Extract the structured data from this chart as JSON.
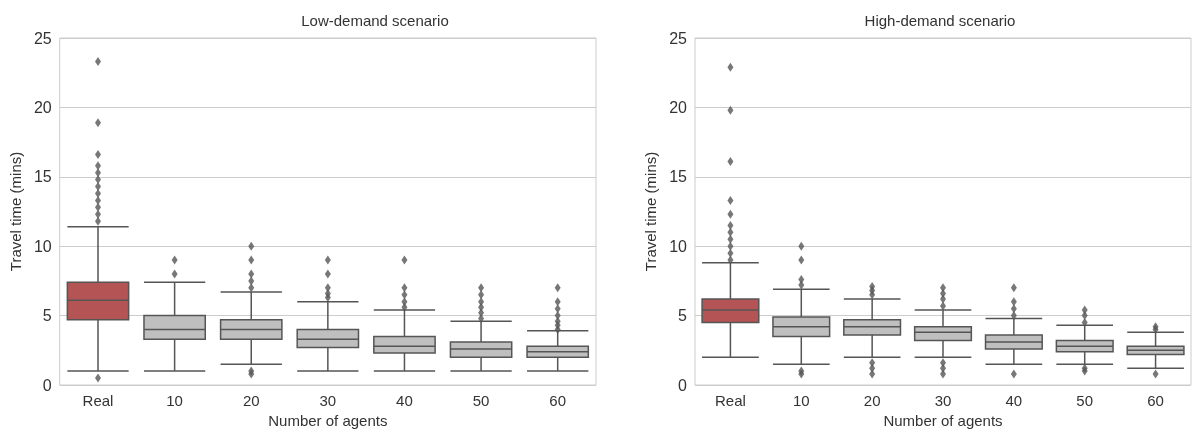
{
  "chart_data": [
    {
      "type": "box",
      "title": "Low-demand scenario",
      "xlabel": "Number of agents",
      "ylabel": "Travel time (mins)",
      "categories": [
        "Real",
        "10",
        "20",
        "30",
        "40",
        "50",
        "60"
      ],
      "colors": [
        "#b55454",
        "#bfbfbf",
        "#bfbfbf",
        "#bfbfbf",
        "#bfbfbf",
        "#bfbfbf",
        "#bfbfbf"
      ],
      "boxes": [
        {
          "low": 1.0,
          "q1": 4.7,
          "median": 6.1,
          "q3": 7.4,
          "high": 11.4,
          "outliers": [
            0.5,
            11.8,
            12.3,
            12.8,
            13.3,
            13.8,
            14.3,
            14.8,
            15.3,
            15.8,
            16.6,
            18.9,
            23.3
          ]
        },
        {
          "low": 1.0,
          "q1": 3.3,
          "median": 4.0,
          "q3": 5.0,
          "high": 7.4,
          "outliers": [
            8.0,
            9.0
          ]
        },
        {
          "low": 1.5,
          "q1": 3.3,
          "median": 4.0,
          "q3": 4.7,
          "high": 6.7,
          "outliers": [
            0.8,
            1.0,
            7.0,
            7.5,
            8.0,
            9.0,
            10.0
          ]
        },
        {
          "low": 1.0,
          "q1": 2.7,
          "median": 3.3,
          "q3": 4.0,
          "high": 6.0,
          "outliers": [
            6.3,
            6.6,
            7.0,
            8.0,
            9.0
          ]
        },
        {
          "low": 1.0,
          "q1": 2.3,
          "median": 2.8,
          "q3": 3.5,
          "high": 5.4,
          "outliers": [
            5.6,
            6.0,
            6.5,
            7.0,
            9.0
          ]
        },
        {
          "low": 1.0,
          "q1": 2.0,
          "median": 2.6,
          "q3": 3.1,
          "high": 4.6,
          "outliers": [
            4.8,
            5.2,
            5.6,
            6.0,
            6.5,
            7.0
          ]
        },
        {
          "low": 1.0,
          "q1": 2.0,
          "median": 2.4,
          "q3": 2.8,
          "high": 3.9,
          "outliers": [
            4.0,
            4.3,
            4.6,
            5.0,
            5.5,
            6.0,
            7.0
          ]
        }
      ],
      "ylim": [
        0,
        25
      ],
      "yticks": [
        0,
        5,
        10,
        15,
        20,
        25
      ],
      "grid": "y",
      "marker": "diamond"
    },
    {
      "type": "box",
      "title": "High-demand scenario",
      "xlabel": "Number of agents",
      "ylabel": "Travel time (mins)",
      "categories": [
        "Real",
        "10",
        "20",
        "30",
        "40",
        "50",
        "60"
      ],
      "colors": [
        "#b55454",
        "#bfbfbf",
        "#bfbfbf",
        "#bfbfbf",
        "#bfbfbf",
        "#bfbfbf",
        "#bfbfbf"
      ],
      "boxes": [
        {
          "low": 2.0,
          "q1": 4.5,
          "median": 5.4,
          "q3": 6.2,
          "high": 8.8,
          "outliers": [
            9.0,
            9.5,
            10.0,
            10.5,
            11.0,
            11.5,
            12.3,
            13.3,
            16.1,
            19.8,
            22.9
          ]
        },
        {
          "low": 1.5,
          "q1": 3.5,
          "median": 4.2,
          "q3": 4.9,
          "high": 6.9,
          "outliers": [
            0.8,
            1.0,
            7.2,
            7.6,
            9.0,
            10.0
          ]
        },
        {
          "low": 2.0,
          "q1": 3.6,
          "median": 4.2,
          "q3": 4.7,
          "high": 6.2,
          "outliers": [
            0.8,
            1.2,
            1.6,
            6.5,
            6.8,
            7.1
          ]
        },
        {
          "low": 2.0,
          "q1": 3.2,
          "median": 3.8,
          "q3": 4.2,
          "high": 5.4,
          "outliers": [
            0.8,
            1.2,
            1.6,
            5.7,
            6.2,
            6.6,
            7.0
          ]
        },
        {
          "low": 1.5,
          "q1": 2.6,
          "median": 3.1,
          "q3": 3.6,
          "high": 4.8,
          "outliers": [
            0.8,
            5.0,
            5.5,
            6.0,
            7.0
          ]
        },
        {
          "low": 1.5,
          "q1": 2.4,
          "median": 2.8,
          "q3": 3.2,
          "high": 4.3,
          "outliers": [
            1.0,
            1.2,
            4.5,
            5.0,
            5.4
          ]
        },
        {
          "low": 1.2,
          "q1": 2.2,
          "median": 2.5,
          "q3": 2.8,
          "high": 3.8,
          "outliers": [
            0.8,
            4.0,
            4.2
          ]
        }
      ],
      "ylim": [
        0,
        25
      ],
      "yticks": [
        0,
        5,
        10,
        15,
        20,
        25
      ],
      "grid": "y",
      "marker": "diamond"
    }
  ]
}
